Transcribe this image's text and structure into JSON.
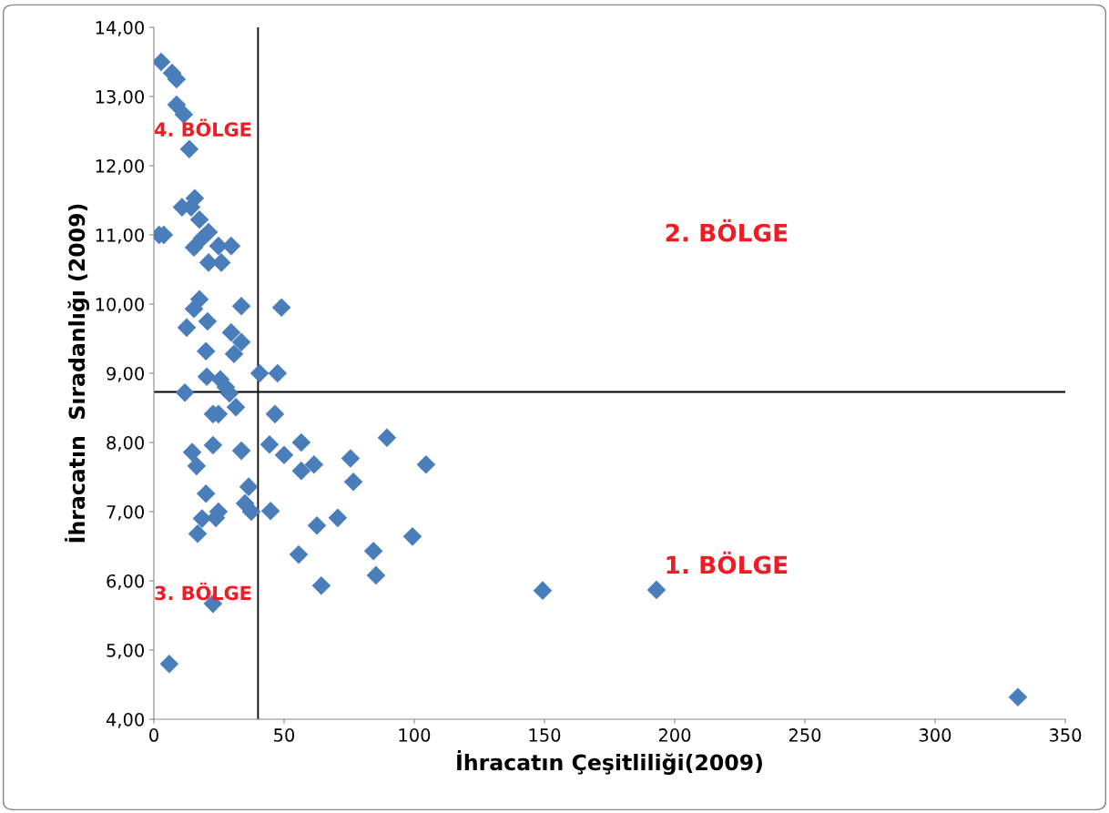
{
  "chart_data": {
    "type": "scatter",
    "xlabel": "İhracatın Çeşitliliği(2009)",
    "ylabel": "İhracatın  Sıradanlığı (2009)",
    "x": [
      2.8,
      7,
      8.7,
      8.7,
      11.5,
      13.6,
      15.7,
      10.8,
      14.3,
      17.5,
      2,
      3.8,
      21,
      18.5,
      15.4,
      24.8,
      29.7,
      21,
      25.9,
      33.6,
      49,
      17.5,
      15.4,
      12.6,
      20.6,
      29.7,
      33.6,
      20,
      30.8,
      20.3,
      40.6,
      47.5,
      11.9,
      25.5,
      27.6,
      29,
      31.5,
      22.7,
      24.8,
      46.5,
      14.7,
      16.4,
      22.7,
      33.6,
      44.4,
      50,
      56.6,
      56.6,
      61.5,
      75.5,
      76.6,
      89.5,
      104.5,
      20,
      36.4,
      35,
      37.4,
      44.8,
      24.8,
      23.8,
      18.5,
      16.8,
      62.6,
      70.6,
      55.6,
      84.3,
      99.3,
      85.3,
      64.3,
      22.7,
      149.3,
      193,
      5.9,
      331.8
    ],
    "values": [
      13.5,
      13.34,
      13.25,
      12.88,
      12.74,
      12.24,
      11.53,
      11.4,
      11.4,
      11.22,
      11.0,
      11.0,
      11.04,
      10.95,
      10.82,
      10.84,
      10.84,
      10.6,
      10.6,
      9.97,
      9.95,
      10.07,
      9.93,
      9.66,
      9.75,
      9.59,
      9.45,
      9.32,
      9.28,
      8.95,
      9.0,
      9.0,
      8.72,
      8.91,
      8.8,
      8.71,
      8.51,
      8.41,
      8.41,
      8.41,
      7.86,
      7.66,
      7.96,
      7.88,
      7.97,
      7.82,
      8.0,
      7.59,
      7.68,
      7.77,
      7.43,
      8.07,
      7.68,
      7.26,
      7.36,
      7.12,
      7.0,
      7.01,
      7.0,
      6.91,
      6.9,
      6.68,
      6.8,
      6.91,
      6.38,
      6.43,
      6.64,
      6.08,
      5.93,
      5.67,
      5.86,
      5.87,
      4.8,
      4.32
    ],
    "color": "#4a7ebb",
    "marker": "diamond",
    "grid": false,
    "legend": false,
    "xlim": [
      0,
      350
    ],
    "xticks": [
      0,
      50,
      100,
      150,
      200,
      250,
      300,
      350
    ],
    "ylim": [
      4,
      14
    ],
    "yticks": [
      {
        "value": 4,
        "label": "4,00"
      },
      {
        "value": 5,
        "label": "5,00"
      },
      {
        "value": 6,
        "label": "6,00"
      },
      {
        "value": 7,
        "label": "7,00"
      },
      {
        "value": 8,
        "label": "8,00"
      },
      {
        "value": 9,
        "label": "9,00"
      },
      {
        "value": 10,
        "label": "10,00"
      },
      {
        "value": 11,
        "label": "11,00"
      },
      {
        "value": 12,
        "label": "12,00"
      },
      {
        "value": 13,
        "label": "13,00"
      },
      {
        "value": 14,
        "label": "14,00"
      }
    ],
    "ref_lines": [
      {
        "axis": "x",
        "value": 40,
        "color": "#000000"
      },
      {
        "axis": "y",
        "value": 8.73,
        "color": "#000000"
      }
    ],
    "annotations": [
      "4. BÖLGE",
      "2. BÖLGE",
      "3. BÖLGE",
      "1. BÖLGE"
    ]
  }
}
